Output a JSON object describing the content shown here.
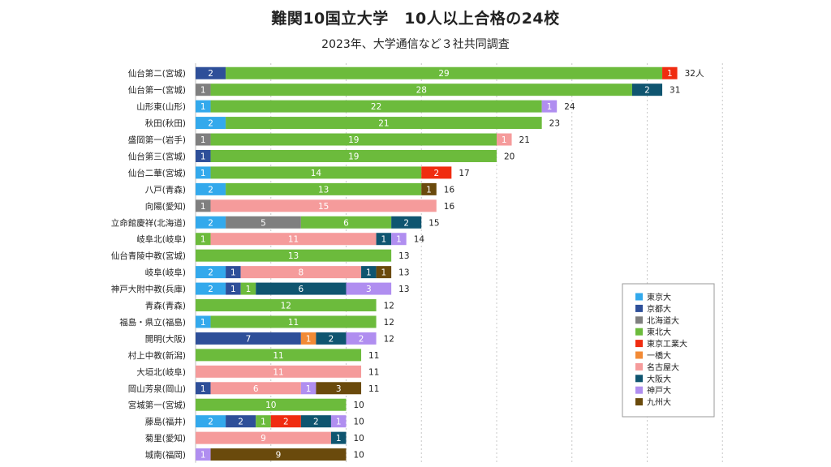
{
  "chart_data": {
    "type": "bar",
    "orientation": "horizontal",
    "stacked": true,
    "title": "難関10国立大学　10人以上合格の24校",
    "subtitle": "2023年、大学通信など３社共同調査",
    "xlim": [
      0,
      35
    ],
    "grid": true,
    "legend_position": "right",
    "total_suffix_first": "人",
    "categories": [
      "仙台第二(宮城)",
      "仙台第一(宮城)",
      "山形東(山形)",
      "秋田(秋田)",
      "盛岡第一(岩手)",
      "仙台第三(宮城)",
      "仙台二華(宮城)",
      "八戸(青森)",
      "向陽(愛知)",
      "立命館慶祥(北海道)",
      "岐阜北(岐阜)",
      "仙台青陵中教(宮城)",
      "岐阜(岐阜)",
      "神戸大附中教(兵庫)",
      "青森(青森)",
      "福島・県立(福島)",
      "開明(大阪)",
      "村上中教(新潟)",
      "大垣北(岐阜)",
      "岡山芳泉(岡山)",
      "宮城第一(宮城)",
      "藤島(福井)",
      "菊里(愛知)",
      "城南(福岡)"
    ],
    "totals": [
      32,
      31,
      24,
      23,
      21,
      20,
      17,
      16,
      16,
      15,
      14,
      13,
      13,
      13,
      12,
      12,
      12,
      11,
      11,
      11,
      10,
      10,
      10,
      10
    ],
    "series": [
      {
        "name": "東京大",
        "color": "#33a9ec",
        "values": [
          0,
          0,
          1,
          2,
          0,
          0,
          1,
          2,
          0,
          2,
          0,
          0,
          2,
          2,
          0,
          1,
          0,
          0,
          0,
          0,
          0,
          2,
          0,
          0
        ]
      },
      {
        "name": "京都大",
        "color": "#2e4f99",
        "values": [
          2,
          0,
          0,
          0,
          0,
          1,
          0,
          0,
          0,
          0,
          0,
          0,
          1,
          1,
          0,
          0,
          7,
          0,
          0,
          1,
          0,
          2,
          0,
          0
        ]
      },
      {
        "name": "北海道大",
        "color": "#7f7f7f",
        "values": [
          0,
          1,
          0,
          0,
          1,
          0,
          0,
          0,
          1,
          5,
          0,
          0,
          0,
          0,
          0,
          0,
          0,
          0,
          0,
          0,
          0,
          0,
          0,
          0
        ]
      },
      {
        "name": "東北大",
        "color": "#6cbb3c",
        "values": [
          29,
          28,
          22,
          21,
          19,
          19,
          14,
          13,
          0,
          6,
          1,
          13,
          0,
          1,
          12,
          11,
          0,
          11,
          0,
          0,
          10,
          1,
          0,
          0
        ]
      },
      {
        "name": "東京工業大",
        "color": "#f02c10",
        "values": [
          1,
          0,
          0,
          0,
          0,
          0,
          2,
          0,
          0,
          0,
          0,
          0,
          0,
          0,
          0,
          0,
          0,
          0,
          0,
          0,
          0,
          2,
          0,
          0
        ]
      },
      {
        "name": "一橋大",
        "color": "#f28a35",
        "values": [
          0,
          0,
          0,
          0,
          0,
          0,
          0,
          0,
          0,
          0,
          0,
          0,
          0,
          0,
          0,
          0,
          1,
          0,
          0,
          0,
          0,
          0,
          0,
          0
        ]
      },
      {
        "name": "名古屋大",
        "color": "#f59b9b",
        "values": [
          0,
          0,
          0,
          0,
          1,
          0,
          0,
          0,
          15,
          0,
          11,
          0,
          8,
          0,
          0,
          0,
          0,
          0,
          11,
          6,
          0,
          0,
          9,
          0
        ]
      },
      {
        "name": "大阪大",
        "color": "#0f5570",
        "values": [
          0,
          2,
          0,
          0,
          0,
          0,
          0,
          0,
          0,
          2,
          1,
          0,
          1,
          6,
          0,
          0,
          2,
          0,
          0,
          0,
          0,
          2,
          1,
          0
        ]
      },
      {
        "name": "神戸大",
        "color": "#b08ef0",
        "values": [
          0,
          0,
          1,
          0,
          0,
          0,
          0,
          0,
          0,
          0,
          1,
          0,
          0,
          3,
          0,
          0,
          2,
          0,
          0,
          1,
          0,
          1,
          0,
          1
        ]
      },
      {
        "name": "九州大",
        "color": "#6a4a0c",
        "values": [
          0,
          0,
          0,
          0,
          0,
          0,
          0,
          1,
          0,
          0,
          0,
          0,
          1,
          0,
          0,
          0,
          0,
          0,
          0,
          3,
          0,
          0,
          0,
          9
        ]
      }
    ]
  }
}
